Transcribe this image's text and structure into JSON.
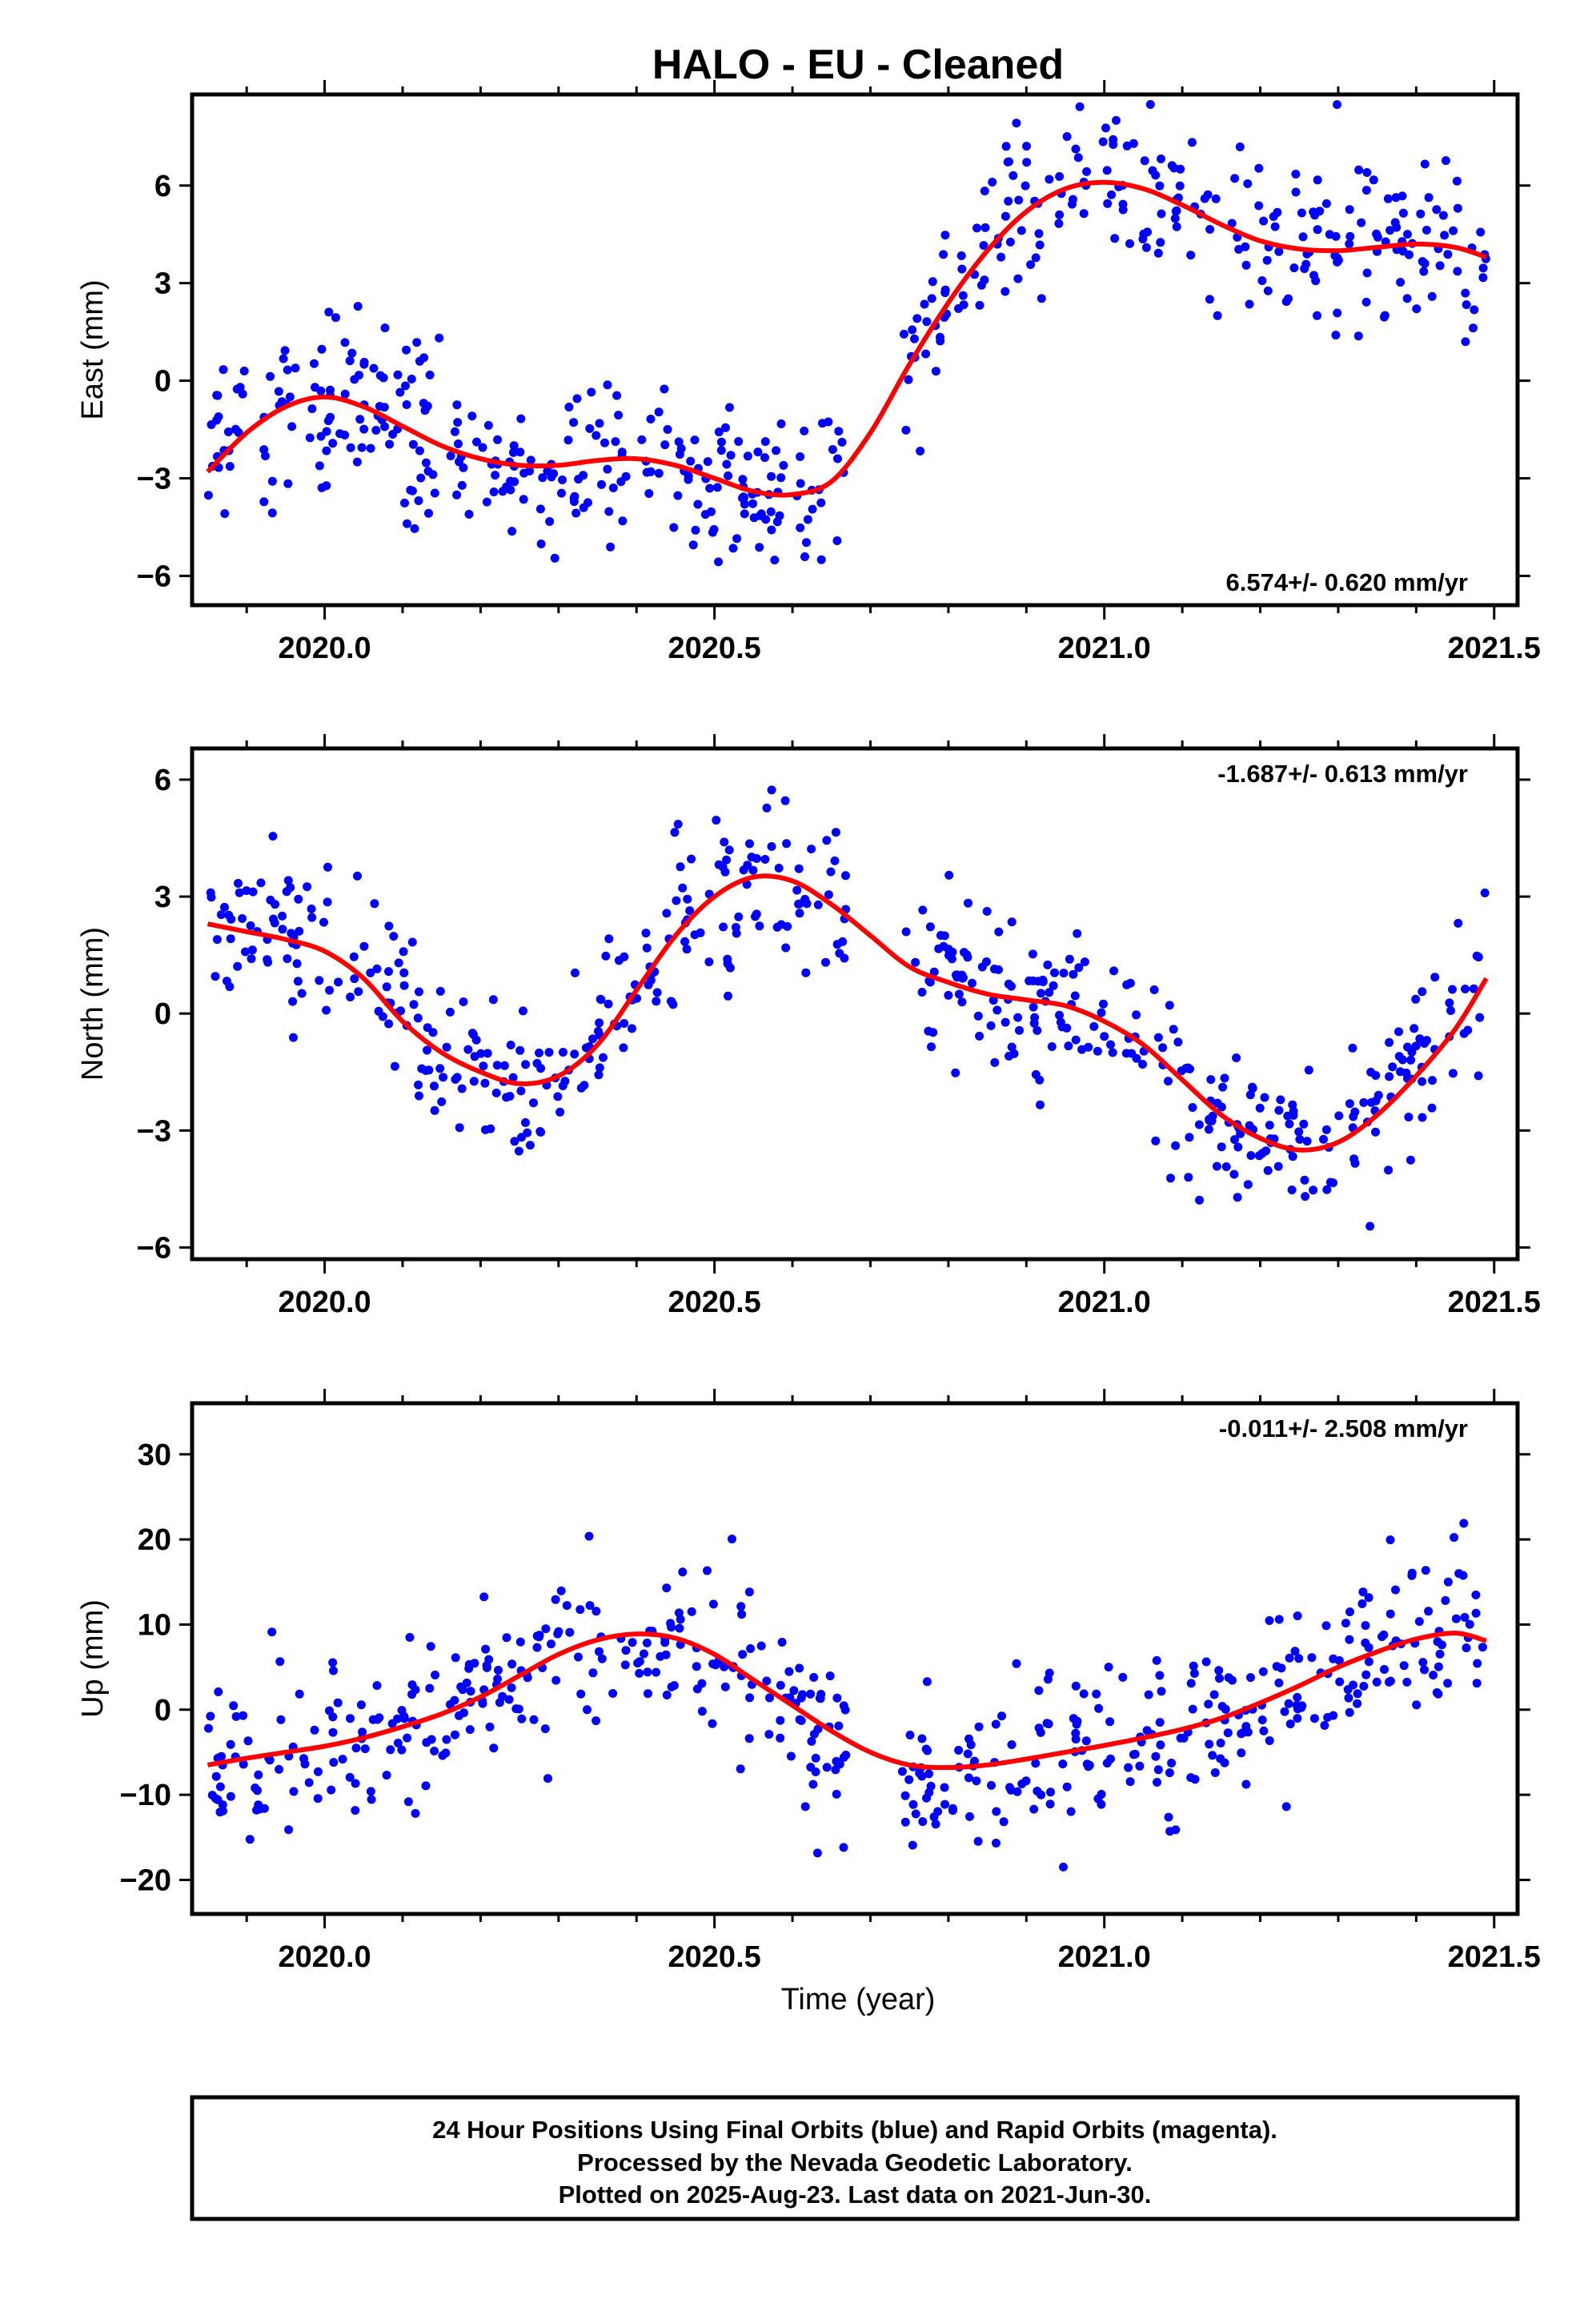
{
  "title": "HALO  - EU - Cleaned",
  "xlabel": "Time (year)",
  "footer": {
    "lines": [
      "24 Hour Positions Using Final Orbits (blue) and Rapid Orbits (magenta).",
      "Processed by the Nevada Geodetic Laboratory.",
      "Plotted on 2025-Aug-23. Last data on 2021-Jun-30."
    ]
  },
  "colors": {
    "points": "#0000ff",
    "fit": "#ff0000",
    "frame": "#000000"
  },
  "chart_data": [
    {
      "type": "scatter",
      "id": "east",
      "ylabel": "East (mm)",
      "xlim": [
        2019.83,
        2021.53
      ],
      "ylim": [
        -6.9,
        8.8
      ],
      "xticks": [
        2020.0,
        2020.5,
        2021.0,
        2021.5
      ],
      "xtick_labels": [
        "2020.0",
        "2020.5",
        "2021.0",
        "2021.5"
      ],
      "yticks": [
        -6,
        -3,
        0,
        3,
        6
      ],
      "ytick_labels": [
        "−6",
        "−3",
        "0",
        "3",
        "6"
      ],
      "rate_label": "6.574+/- 0.620 mm/yr",
      "rate_position": "bottom-right",
      "grid": false,
      "data_range": [
        2019.85,
        2021.49
      ],
      "noise_sd": 1.3,
      "series": [
        {
          "style": "points",
          "seed": 11
        },
        {
          "style": "line",
          "x": [
            2019.85,
            2019.9,
            2019.95,
            2020.0,
            2020.05,
            2020.1,
            2020.15,
            2020.2,
            2020.25,
            2020.3,
            2020.35,
            2020.4,
            2020.45,
            2020.5,
            2020.55,
            2020.6,
            2020.65,
            2020.7,
            2020.75,
            2020.8,
            2020.85,
            2020.9,
            2020.95,
            2021.0,
            2021.05,
            2021.1,
            2021.15,
            2021.2,
            2021.25,
            2021.3,
            2021.35,
            2021.4,
            2021.45,
            2021.49
          ],
          "y": [
            -2.8,
            -1.6,
            -0.8,
            -0.5,
            -0.8,
            -1.4,
            -2.0,
            -2.4,
            -2.6,
            -2.6,
            -2.45,
            -2.4,
            -2.6,
            -3.0,
            -3.4,
            -3.5,
            -3.1,
            -1.6,
            0.5,
            2.4,
            4.0,
            5.2,
            5.9,
            6.1,
            5.9,
            5.4,
            4.8,
            4.3,
            4.05,
            4.0,
            4.1,
            4.2,
            4.1,
            3.8
          ]
        }
      ]
    },
    {
      "type": "scatter",
      "id": "north",
      "ylabel": "North (mm)",
      "xlim": [
        2019.83,
        2021.53
      ],
      "ylim": [
        -6.3,
        6.8
      ],
      "xticks": [
        2020.0,
        2020.5,
        2021.0,
        2021.5
      ],
      "xtick_labels": [
        "2020.0",
        "2020.5",
        "2021.0",
        "2021.5"
      ],
      "yticks": [
        -6,
        -3,
        0,
        3,
        6
      ],
      "ytick_labels": [
        "−6",
        "−3",
        "0",
        "3",
        "6"
      ],
      "rate_label": "-1.687+/- 0.613 mm/yr",
      "rate_position": "top-right",
      "grid": false,
      "data_range": [
        2019.85,
        2021.49
      ],
      "noise_sd": 0.95,
      "series": [
        {
          "style": "points",
          "seed": 23
        },
        {
          "style": "line",
          "x": [
            2019.85,
            2019.9,
            2019.95,
            2020.0,
            2020.05,
            2020.1,
            2020.15,
            2020.2,
            2020.25,
            2020.3,
            2020.35,
            2020.4,
            2020.45,
            2020.5,
            2020.55,
            2020.6,
            2020.65,
            2020.7,
            2020.75,
            2020.8,
            2020.85,
            2020.9,
            2020.95,
            2021.0,
            2021.05,
            2021.1,
            2021.15,
            2021.2,
            2021.25,
            2021.3,
            2021.35,
            2021.4,
            2021.45,
            2021.49
          ],
          "y": [
            2.3,
            2.1,
            1.9,
            1.6,
            0.9,
            -0.2,
            -1.0,
            -1.5,
            -1.8,
            -1.6,
            -0.8,
            0.6,
            2.0,
            3.0,
            3.5,
            3.4,
            2.8,
            2.0,
            1.2,
            0.8,
            0.5,
            0.35,
            0.2,
            -0.2,
            -0.8,
            -1.7,
            -2.6,
            -3.2,
            -3.5,
            -3.3,
            -2.6,
            -1.6,
            -0.4,
            0.9
          ]
        }
      ]
    },
    {
      "type": "scatter",
      "id": "up",
      "ylabel": "Up (mm)",
      "xlim": [
        2019.83,
        2021.53
      ],
      "ylim": [
        -24,
        36
      ],
      "xticks": [
        2020.0,
        2020.5,
        2021.0,
        2021.5
      ],
      "xtick_labels": [
        "2020.0",
        "2020.5",
        "2021.0",
        "2021.5"
      ],
      "yticks": [
        -20,
        -10,
        0,
        10,
        20,
        30
      ],
      "ytick_labels": [
        "−20",
        "−10",
        "0",
        "10",
        "20",
        "30"
      ],
      "rate_label": "-0.011+/- 2.508 mm/yr",
      "rate_position": "top-right",
      "grid": false,
      "data_range": [
        2019.85,
        2021.49
      ],
      "noise_sd": 4.8,
      "series": [
        {
          "style": "points",
          "seed": 37
        },
        {
          "style": "line",
          "x": [
            2019.85,
            2019.9,
            2019.95,
            2020.0,
            2020.05,
            2020.1,
            2020.15,
            2020.2,
            2020.25,
            2020.3,
            2020.35,
            2020.4,
            2020.45,
            2020.5,
            2020.55,
            2020.6,
            2020.65,
            2020.7,
            2020.75,
            2020.8,
            2020.85,
            2020.9,
            2020.95,
            2021.0,
            2021.05,
            2021.1,
            2021.15,
            2021.2,
            2021.25,
            2021.3,
            2021.35,
            2021.4,
            2021.45,
            2021.49
          ],
          "y": [
            -6.5,
            -5.7,
            -5.0,
            -4.3,
            -3.3,
            -2.0,
            -0.5,
            1.5,
            4.0,
            6.5,
            8.2,
            8.9,
            8.4,
            6.5,
            3.5,
            0.5,
            -2.5,
            -5.0,
            -6.5,
            -6.8,
            -6.5,
            -5.8,
            -5.0,
            -4.2,
            -3.3,
            -2.3,
            -1.0,
            0.8,
            2.8,
            5.0,
            6.8,
            8.3,
            9.0,
            8.1
          ]
        }
      ]
    }
  ]
}
